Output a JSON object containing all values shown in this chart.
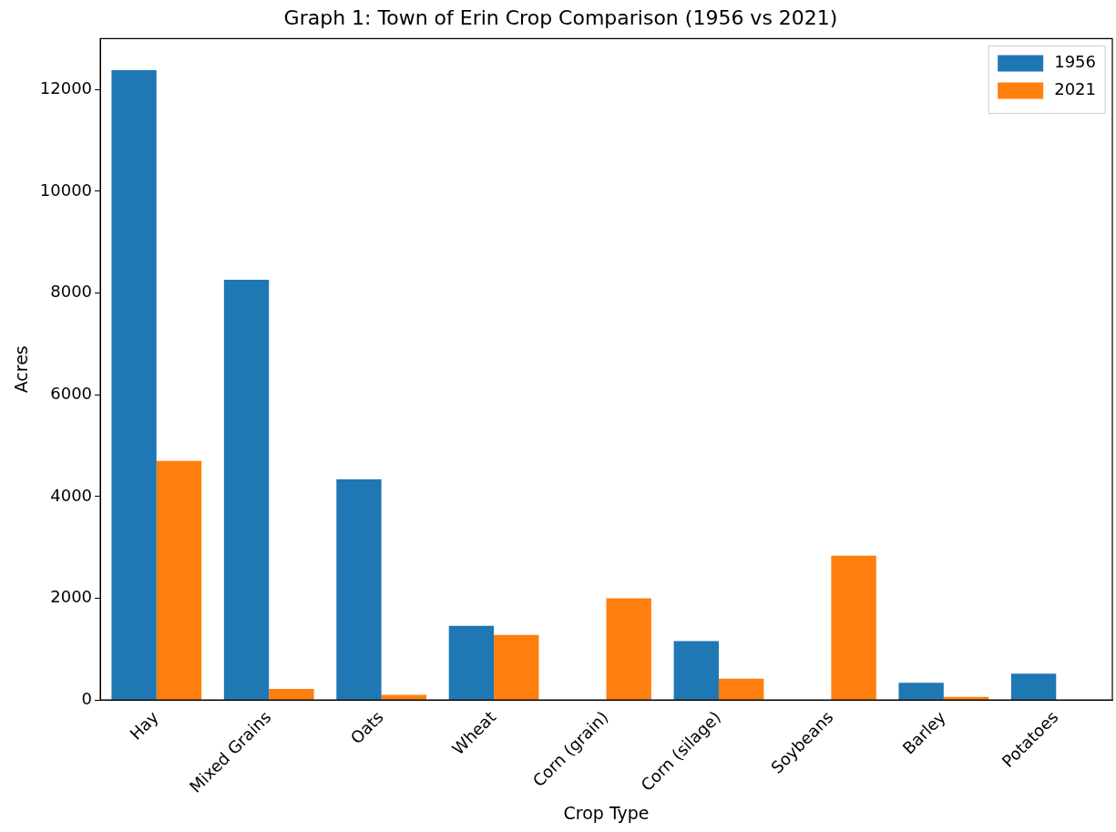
{
  "chart_data": {
    "type": "bar",
    "title": "Graph 1: Town of Erin Crop Comparison (1956 vs 2021)",
    "xlabel": "Crop Type",
    "ylabel": "Acres",
    "categories": [
      "Hay",
      "Mixed Grains",
      "Oats",
      "Wheat",
      "Corn (grain)",
      "Corn (silage)",
      "Soybeans",
      "Barley",
      "Potatoes"
    ],
    "series": [
      {
        "name": "1956",
        "color": "#1f77b4",
        "values": [
          12380,
          8260,
          4340,
          1460,
          0,
          1160,
          0,
          340,
          520
        ]
      },
      {
        "name": "2021",
        "color": "#ff7f0e",
        "values": [
          4700,
          220,
          100,
          1280,
          2000,
          420,
          2840,
          60,
          0
        ]
      }
    ],
    "ylim": [
      0,
      13000
    ],
    "yticks": [
      0,
      2000,
      4000,
      6000,
      8000,
      10000,
      12000
    ],
    "grid": false,
    "legend": "top right"
  }
}
